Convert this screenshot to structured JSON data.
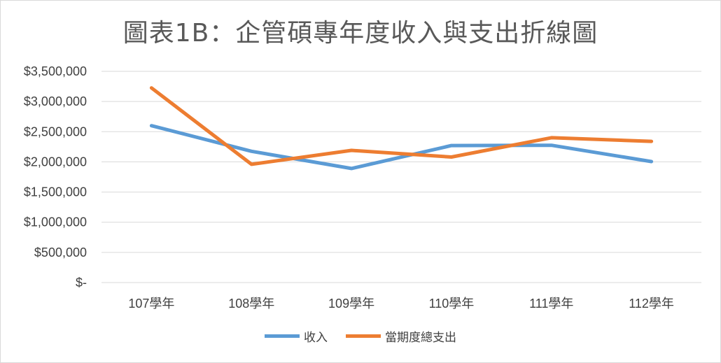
{
  "chart_data": {
    "type": "line",
    "title": "圖表1B：企管碩專年度收入與支出折線圖",
    "categories": [
      "107學年",
      "108學年",
      "109學年",
      "110學年",
      "111學年",
      "112學年"
    ],
    "series": [
      {
        "name": "收入",
        "color": "#5b9bd5",
        "values": [
          2600000,
          2175000,
          1890000,
          2270000,
          2275000,
          2005000
        ]
      },
      {
        "name": "當期度總支出",
        "color": "#ed7d31",
        "values": [
          3225000,
          1960000,
          2190000,
          2080000,
          2400000,
          2340000
        ]
      }
    ],
    "y_ticks": [
      "$-",
      "$500,000",
      "$1,000,000",
      "$1,500,000",
      "$2,000,000",
      "$2,500,000",
      "$3,000,000",
      "$3,500,000"
    ],
    "ylim": [
      0,
      3500000
    ],
    "grid": true,
    "legend_position": "bottom"
  }
}
